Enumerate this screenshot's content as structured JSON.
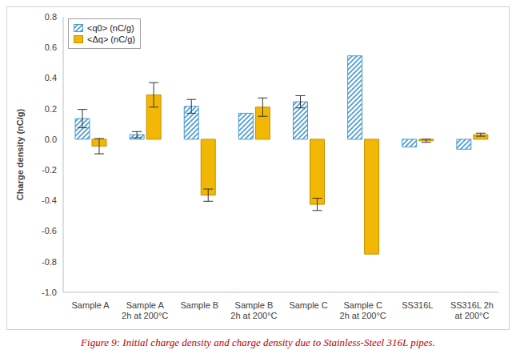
{
  "chart_data": {
    "type": "bar",
    "title": "Figure 9: Initial charge density and charge density due to Stainless-Steel 316L pipes.",
    "y_label": "Charge density (nC/g)",
    "categories": [
      "Sample A",
      "Sample A\n2h at 200°C",
      "Sample B",
      "Sample B\n2h at 200°C",
      "Sample C",
      "Sample C\n2h at 200°C",
      "SS316L",
      "SS316L 2h\nat 200°C"
    ],
    "series": [
      {
        "name": "<q0> (nC/g)",
        "color": "#4a9bd4",
        "values": [
          0.135,
          0.03,
          0.215,
          0.17,
          0.245,
          0.545,
          -0.05,
          -0.065
        ],
        "errors": [
          0.06,
          0.02,
          0.045,
          null,
          0.04,
          null,
          null,
          null
        ]
      },
      {
        "name": "<Δq> (nC/g)",
        "color": "#f2b705",
        "values": [
          -0.045,
          0.29,
          -0.365,
          0.21,
          -0.425,
          -0.75,
          -0.01,
          0.03
        ],
        "errors": [
          0.05,
          0.08,
          0.04,
          0.06,
          0.04,
          null,
          0.01,
          0.01
        ]
      }
    ],
    "ylim": [
      -1,
      0.8
    ],
    "yticks": [
      {
        "value": -1,
        "label": "-1.0"
      },
      -0.8,
      -0.6,
      -0.4,
      -0.2,
      {
        "value": 0,
        "label": "0.0"
      },
      0.2,
      0.4,
      0.6,
      0.8
    ],
    "grid": false,
    "legend": "upper left"
  }
}
